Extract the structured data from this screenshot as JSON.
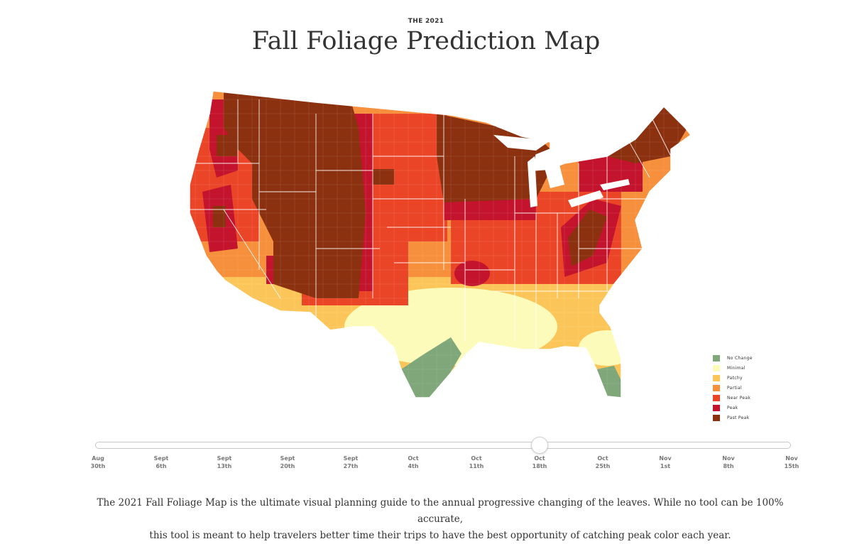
{
  "header": {
    "eyebrow": "THE 2021",
    "title": "Fall Foliage Prediction Map"
  },
  "legend": [
    {
      "label": "No Change",
      "color": "#7fa77a"
    },
    {
      "label": "Minimal",
      "color": "#fdfbb9"
    },
    {
      "label": "Patchy",
      "color": "#fcc559"
    },
    {
      "label": "Partial",
      "color": "#f7903c"
    },
    {
      "label": "Near Peak",
      "color": "#eb4528"
    },
    {
      "label": "Peak",
      "color": "#c4142d"
    },
    {
      "label": "Past Peak",
      "color": "#8b3110"
    }
  ],
  "timeline": {
    "selected_index": 7,
    "ticks": [
      {
        "line1": "Aug",
        "line2": "30th"
      },
      {
        "line1": "Sept",
        "line2": "6th"
      },
      {
        "line1": "Sept",
        "line2": "13th"
      },
      {
        "line1": "Sept",
        "line2": "20th"
      },
      {
        "line1": "Sept",
        "line2": "27th"
      },
      {
        "line1": "Oct",
        "line2": "4th"
      },
      {
        "line1": "Oct",
        "line2": "11th"
      },
      {
        "line1": "Oct",
        "line2": "18th"
      },
      {
        "line1": "Oct",
        "line2": "25th"
      },
      {
        "line1": "Nov",
        "line2": "1st"
      },
      {
        "line1": "Nov",
        "line2": "8th"
      },
      {
        "line1": "Nov",
        "line2": "15th"
      }
    ]
  },
  "description": {
    "line1": "The 2021 Fall Foliage Map is the ultimate visual planning guide to the annual progressive changing of the leaves. While no tool can be 100% accurate,",
    "line2": "this tool is meant to help travelers better time their trips to have the best opportunity of catching peak color each year."
  }
}
